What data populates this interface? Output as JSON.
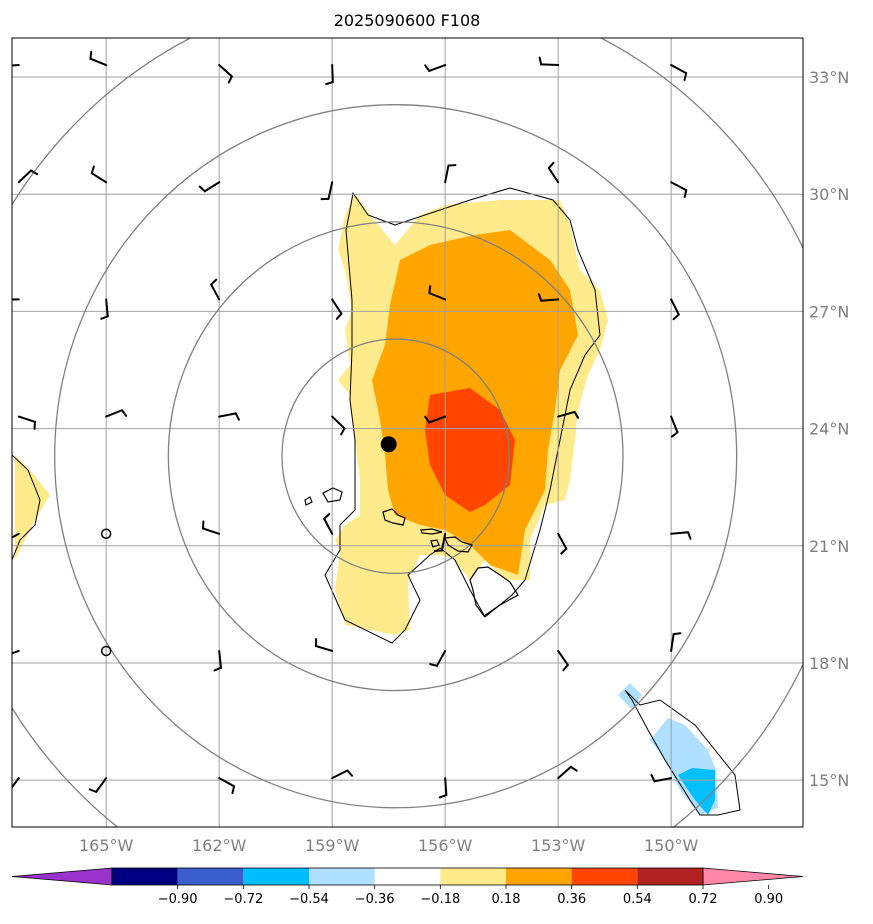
{
  "title": "2025090600 F108",
  "map": {
    "lon_range": [
      -167.5,
      -146.5
    ],
    "lat_range": [
      13.8,
      34.0
    ],
    "lat_ticks": [
      {
        "value": 33,
        "label": "33°N"
      },
      {
        "value": 30,
        "label": "30°N"
      },
      {
        "value": 27,
        "label": "27°N"
      },
      {
        "value": 24,
        "label": "24°N"
      },
      {
        "value": 21,
        "label": "21°N"
      },
      {
        "value": 18,
        "label": "18°N"
      },
      {
        "value": 15,
        "label": "15°N"
      }
    ],
    "lon_ticks": [
      {
        "value": -165,
        "label": "165°W"
      },
      {
        "value": -162,
        "label": "162°W"
      },
      {
        "value": -159,
        "label": "159°W"
      },
      {
        "value": -156,
        "label": "156°W"
      },
      {
        "value": -153,
        "label": "153°W"
      },
      {
        "value": -150,
        "label": "150°W"
      }
    ],
    "grid": true,
    "center_marker": {
      "lon": -157.5,
      "lat": 23.6
    },
    "range_rings_deg": [
      3,
      6,
      9,
      12
    ]
  },
  "colorbar": {
    "ticks": [
      "−0.90",
      "−0.72",
      "−0.54",
      "−0.36",
      "−0.18",
      "0.18",
      "0.36",
      "0.54",
      "0.72",
      "0.90"
    ],
    "levels": [
      -0.9,
      -0.72,
      -0.54,
      -0.36,
      -0.18,
      0.18,
      0.36,
      0.54,
      0.72,
      0.9
    ],
    "colors": [
      "#9933cc",
      "#000080",
      "#3a5fcd",
      "#00bfff",
      "#b0e0ff",
      "#ffffff",
      "#ffeb8c",
      "#ffa500",
      "#ff4500",
      "#b22222",
      "#ff88aa"
    ]
  },
  "fill_colors": {
    "pos1": "#ffeb8c",
    "pos2": "#ffa500",
    "pos3": "#ff4500",
    "neg1": "#b0e0ff",
    "neg2": "#00bfff"
  }
}
